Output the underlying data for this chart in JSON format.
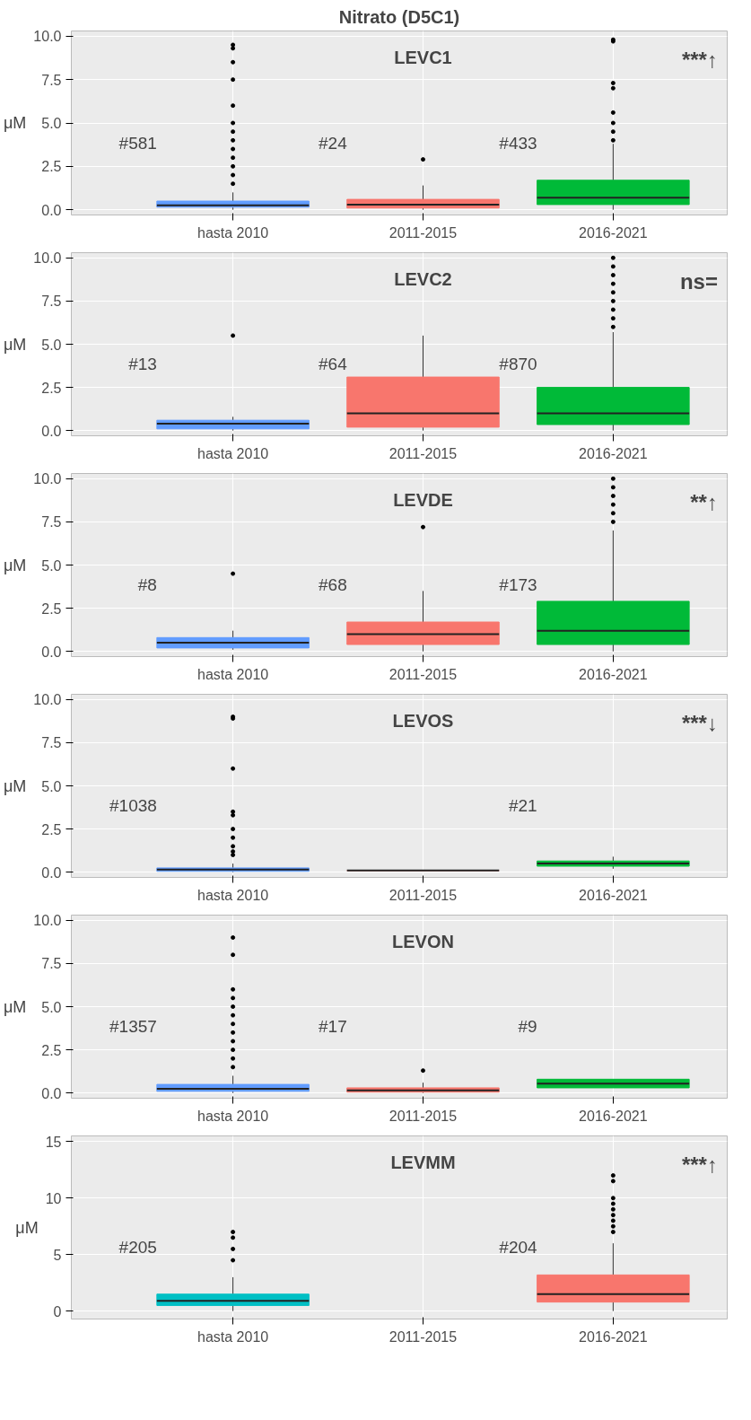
{
  "chart_data": [
    {
      "type": "box",
      "title": "Nitrato (D5C1)",
      "subtitle": "LEVC1",
      "ylabel": "μM",
      "categories": [
        "hasta 2010",
        "2011-2015",
        "2016-2021"
      ],
      "colors": [
        "#619cff",
        "#f8766d",
        "#00ba38"
      ],
      "ylim": [
        -0.3,
        10.3
      ],
      "yticks": [
        {
          "value": 0,
          "label": "0.0"
        },
        {
          "value": 2.5,
          "label": "2.5"
        },
        {
          "value": 5,
          "label": "5.0"
        },
        {
          "value": 7.5,
          "label": "7.5"
        },
        {
          "value": 10,
          "label": "10.0"
        }
      ],
      "grid": true,
      "boxes": [
        {
          "low": 0,
          "q1": 0.15,
          "median": 0.25,
          "q3": 0.5,
          "high": 1.0,
          "outliers": [
            9.5,
            9.3,
            8.5,
            7.5,
            6.0,
            5.0,
            4.5,
            4.0,
            3.5,
            3.0,
            2.5,
            2.0,
            1.5
          ]
        },
        {
          "low": 0,
          "q1": 0.1,
          "median": 0.3,
          "q3": 0.6,
          "high": 1.4,
          "outliers": [
            2.9
          ]
        },
        {
          "low": 0,
          "q1": 0.3,
          "median": 0.7,
          "q3": 1.7,
          "high": 3.8,
          "outliers": [
            9.8,
            9.7,
            7.3,
            7.0,
            5.6,
            5.0,
            4.5,
            4.0
          ]
        }
      ],
      "totals": [
        "#581",
        "#24",
        "#433"
      ],
      "annotations": [
        "***↑"
      ]
    },
    {
      "type": "box",
      "subtitle": "LEVC2",
      "ylabel": "μM",
      "categories": [
        "hasta 2010",
        "2011-2015",
        "2016-2021"
      ],
      "colors": [
        "#619cff",
        "#f8766d",
        "#00ba38"
      ],
      "ylim": [
        -0.3,
        10.3
      ],
      "yticks": [
        {
          "value": 0,
          "label": "0.0"
        },
        {
          "value": 2.5,
          "label": "2.5"
        },
        {
          "value": 5,
          "label": "5.0"
        },
        {
          "value": 7.5,
          "label": "7.5"
        },
        {
          "value": 10,
          "label": "10.0"
        }
      ],
      "grid": true,
      "boxes": [
        {
          "low": 0,
          "q1": 0.1,
          "median": 0.4,
          "q3": 0.6,
          "high": 0.8,
          "outliers": [
            5.5
          ]
        },
        {
          "low": 0,
          "q1": 0.2,
          "median": 1.0,
          "q3": 3.1,
          "high": 5.5
        },
        {
          "low": 0,
          "q1": 0.35,
          "median": 1.0,
          "q3": 2.5,
          "high": 5.7,
          "outliers": [
            10.0,
            9.5,
            9.0,
            8.5,
            8.0,
            7.5,
            7.0,
            6.5,
            6.0
          ]
        }
      ],
      "totals": [
        "#13",
        "#64",
        "#870"
      ],
      "annotations": [
        "ns="
      ]
    },
    {
      "type": "box",
      "subtitle": "LEVDE",
      "ylabel": "μM",
      "categories": [
        "hasta 2010",
        "2011-2015",
        "2016-2021"
      ],
      "colors": [
        "#619cff",
        "#f8766d",
        "#00ba38"
      ],
      "ylim": [
        -0.3,
        10.3
      ],
      "yticks": [
        {
          "value": 0,
          "label": "0.0"
        },
        {
          "value": 2.5,
          "label": "2.5"
        },
        {
          "value": 5,
          "label": "5.0"
        },
        {
          "value": 7.5,
          "label": "7.5"
        },
        {
          "value": 10,
          "label": "10.0"
        }
      ],
      "grid": true,
      "boxes": [
        {
          "low": 0.1,
          "q1": 0.2,
          "median": 0.5,
          "q3": 0.8,
          "high": 1.2,
          "outliers": [
            4.5
          ]
        },
        {
          "low": 0,
          "q1": 0.4,
          "median": 1.0,
          "q3": 1.7,
          "high": 3.5,
          "outliers": [
            7.2
          ]
        },
        {
          "low": 0,
          "q1": 0.4,
          "median": 1.2,
          "q3": 2.9,
          "high": 7.0,
          "outliers": [
            10.0,
            9.5,
            9.0,
            8.5,
            8.0,
            7.5
          ]
        }
      ],
      "totals": [
        "#8",
        "#68",
        "#173"
      ],
      "annotations": [
        "**↑"
      ]
    },
    {
      "type": "box",
      "subtitle": "LEVOS",
      "ylabel": "μM",
      "categories": [
        "hasta 2010",
        "2011-2015",
        "2016-2021"
      ],
      "colors": [
        "#619cff",
        "#f8766d",
        "#00ba38"
      ],
      "ylim": [
        -0.3,
        10.3
      ],
      "yticks": [
        {
          "value": 0,
          "label": "0.0"
        },
        {
          "value": 2.5,
          "label": "2.5"
        },
        {
          "value": 5,
          "label": "5.0"
        },
        {
          "value": 7.5,
          "label": "7.5"
        },
        {
          "value": 10,
          "label": "10.0"
        }
      ],
      "grid": true,
      "boxes": [
        {
          "low": 0,
          "q1": 0.05,
          "median": 0.15,
          "q3": 0.25,
          "high": 0.5,
          "outliers": [
            9.0,
            8.9,
            6.0,
            3.5,
            3.3,
            2.5,
            2.0,
            1.5,
            1.2,
            1.0
          ]
        },
        {
          "low": 0.1,
          "q1": 0.1,
          "median": 0.1,
          "q3": 0.1,
          "high": 0.1
        },
        {
          "low": 0.2,
          "q1": 0.35,
          "median": 0.5,
          "q3": 0.65,
          "high": 0.9
        }
      ],
      "totals": [
        "#1038",
        null,
        "#21"
      ],
      "annotations": [
        "***↓"
      ]
    },
    {
      "type": "box",
      "subtitle": "LEVON",
      "ylabel": "μM",
      "categories": [
        "hasta 2010",
        "2011-2015",
        "2016-2021"
      ],
      "colors": [
        "#619cff",
        "#f8766d",
        "#00ba38"
      ],
      "ylim": [
        -0.3,
        10.3
      ],
      "yticks": [
        {
          "value": 0,
          "label": "0.0"
        },
        {
          "value": 2.5,
          "label": "2.5"
        },
        {
          "value": 5,
          "label": "5.0"
        },
        {
          "value": 7.5,
          "label": "7.5"
        },
        {
          "value": 10,
          "label": "10.0"
        }
      ],
      "grid": true,
      "boxes": [
        {
          "low": 0,
          "q1": 0.1,
          "median": 0.25,
          "q3": 0.5,
          "high": 1.0,
          "outliers": [
            9.0,
            8.0,
            6.0,
            5.5,
            5.0,
            4.5,
            4.0,
            3.5,
            3.0,
            2.5,
            2.0,
            1.5
          ]
        },
        {
          "low": 0,
          "q1": 0.05,
          "median": 0.15,
          "q3": 0.3,
          "high": 0.6,
          "outliers": [
            1.3
          ]
        },
        {
          "low": 0.3,
          "q1": 0.3,
          "median": 0.55,
          "q3": 0.8,
          "high": 0.8
        }
      ],
      "totals": [
        "#1357",
        "#17",
        "#9"
      ]
    },
    {
      "type": "box",
      "subtitle": "LEVMM",
      "ylabel": "μM",
      "categories": [
        "hasta 2010",
        "2011-2015",
        "2016-2021"
      ],
      "colors": [
        "#00bfc4",
        "#f8766d",
        "#f8766d"
      ],
      "ylim": [
        -0.7,
        15.5
      ],
      "yticks": [
        0,
        5,
        10,
        15
      ],
      "grid": true,
      "boxes": [
        {
          "low": 0,
          "q1": 0.5,
          "median": 0.9,
          "q3": 1.5,
          "high": 3.0,
          "outliers": [
            7.0,
            6.5,
            5.5,
            4.5
          ]
        },
        null,
        {
          "low": 0,
          "q1": 0.8,
          "median": 1.5,
          "q3": 3.2,
          "high": 6.0,
          "outliers": [
            12.0,
            11.5,
            10.0,
            9.5,
            9.0,
            8.5,
            8.0,
            7.5,
            7.0
          ]
        }
      ],
      "totals": [
        "#205",
        null,
        "#204"
      ],
      "annotations": [
        "***↑"
      ]
    }
  ]
}
